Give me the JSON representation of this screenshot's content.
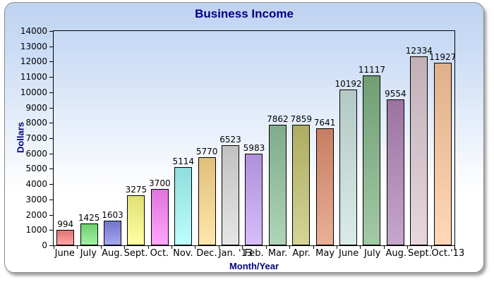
{
  "chart_data": {
    "type": "bar",
    "title": "Business Income",
    "xlabel": "Month/Year",
    "ylabel": "Dollars",
    "ylim": [
      0,
      14000
    ],
    "ytick_step": 1000,
    "grid": false,
    "value_labels_shown": true,
    "categories": [
      "June",
      "July",
      "Aug.",
      "Sept.",
      "Oct.",
      "Nov.",
      "Dec.",
      "Jan. '13",
      "Feb.",
      "Mar.",
      "Apr.",
      "May",
      "June",
      "July",
      "Aug.",
      "Sept.",
      "Oct.'13"
    ],
    "values": [
      994,
      1425,
      1603,
      3275,
      3700,
      5114,
      5770,
      6523,
      5983,
      7862,
      7859,
      7641,
      10192,
      11117,
      9554,
      12334,
      11927
    ],
    "bar_colors": [
      "#FF8484",
      "#7EEC7E",
      "#8484EC",
      "#FFFF84",
      "#FF84FC",
      "#A4FCFC",
      "#FFDC8C",
      "#DCDCDC",
      "#C6A4F8",
      "#90C49C",
      "#C4C470",
      "#E29070",
      "#CCE4E0",
      "#80B484",
      "#B084B8",
      "#DCC8D0",
      "#FFC89C"
    ]
  },
  "style": {
    "title_color": "#000080",
    "axis_title_color": "#000080",
    "tick_label_color": "#000000",
    "bar_border_color": "#000000",
    "plot_border_color": "#000000",
    "panel_border_color": "#8C8C8C",
    "panel_gradient_top": "#BED3F1",
    "panel_gradient_bottom": "#FFFFFF"
  }
}
